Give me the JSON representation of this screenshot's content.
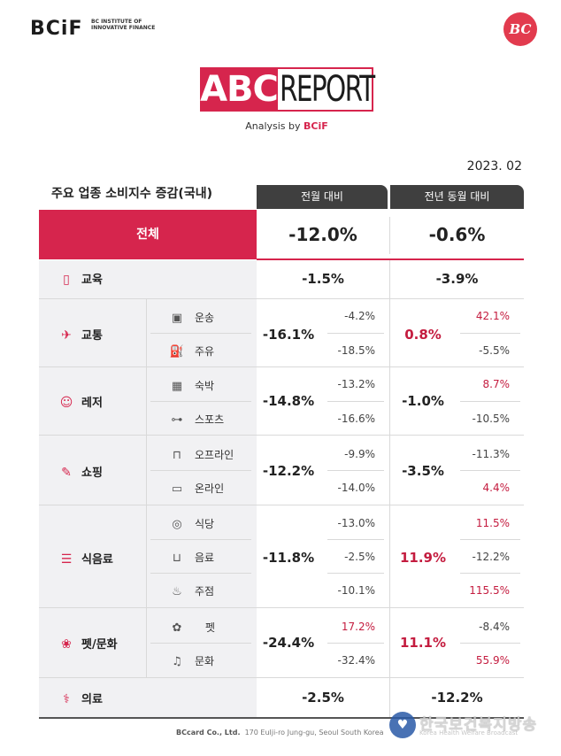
{
  "header": {
    "logo": "BCiF",
    "logo_sub": "BC INSTITUTE OF INNOVATIVE FINANCE",
    "badge": "BC",
    "abc": "ABC",
    "report": "REPORT",
    "analysis_prefix": "Analysis by ",
    "analysis_brand": "BCiF",
    "date": "2023. 02"
  },
  "table": {
    "title": "주요 업종 소비지수 증감(국내)",
    "col_mom": "전월 대비",
    "col_yoy": "전년 동월 대비",
    "total": {
      "label": "전체",
      "mom": "-12.0%",
      "yoy": "-0.6%"
    },
    "education": {
      "label": "교육",
      "icon": "book-icon",
      "mom": "-1.5%",
      "yoy": "-3.9%"
    },
    "groups": [
      {
        "label": "교통",
        "icon": "airplane-icon",
        "mom": "-16.1%",
        "yoy": "0.8%",
        "yoy_red": true,
        "subs": [
          {
            "label": "운송",
            "icon": "train-icon",
            "mom": "-4.2%",
            "yoy": "42.1%",
            "yoy_red": true,
            "mom_red": false
          },
          {
            "label": "주유",
            "icon": "fuel-icon",
            "mom": "-18.5%",
            "yoy": "-5.5%",
            "yoy_red": false,
            "mom_red": false
          }
        ]
      },
      {
        "label": "레저",
        "icon": "smile-icon",
        "mom": "-14.8%",
        "yoy": "-1.0%",
        "yoy_red": false,
        "subs": [
          {
            "label": "숙박",
            "icon": "building-icon",
            "mom": "-13.2%",
            "yoy": "8.7%",
            "yoy_red": true,
            "mom_red": false
          },
          {
            "label": "스포츠",
            "icon": "dumbbell-icon",
            "mom": "-16.6%",
            "yoy": "-10.5%",
            "yoy_red": false,
            "mom_red": false
          }
        ]
      },
      {
        "label": "쇼핑",
        "icon": "card-icon",
        "mom": "-12.2%",
        "yoy": "-3.5%",
        "yoy_red": false,
        "subs": [
          {
            "label": "오프라인",
            "icon": "bag-icon",
            "mom": "-9.9%",
            "yoy": "-11.3%",
            "yoy_red": false,
            "mom_red": false
          },
          {
            "label": "온라인",
            "icon": "phone-icon",
            "mom": "-14.0%",
            "yoy": "4.4%",
            "yoy_red": true,
            "mom_red": false
          }
        ]
      },
      {
        "label": "식음료",
        "icon": "burger-icon",
        "mom": "-11.8%",
        "yoy": "11.9%",
        "yoy_red": true,
        "subs": [
          {
            "label": "식당",
            "icon": "plate-icon",
            "mom": "-13.0%",
            "yoy": "11.5%",
            "yoy_red": true,
            "mom_red": false
          },
          {
            "label": "음료",
            "icon": "cup-icon",
            "mom": "-2.5%",
            "yoy": "-12.2%",
            "yoy_red": false,
            "mom_red": false
          },
          {
            "label": "주점",
            "icon": "beer-icon",
            "mom": "-10.1%",
            "yoy": "115.5%",
            "yoy_red": true,
            "mom_red": false
          }
        ]
      },
      {
        "label": "펫/문화",
        "icon": "pet-culture-icon",
        "mom": "-24.4%",
        "yoy": "11.1%",
        "yoy_red": true,
        "subs": [
          {
            "label": "펫",
            "icon": "paw-icon",
            "mom": "17.2%",
            "yoy": "-8.4%",
            "yoy_red": false,
            "mom_red": true
          },
          {
            "label": "문화",
            "icon": "music-icon",
            "mom": "-32.4%",
            "yoy": "55.9%",
            "yoy_red": true,
            "mom_red": false
          }
        ]
      }
    ],
    "medical": {
      "label": "의료",
      "icon": "syringe-icon",
      "mom": "-2.5%",
      "yoy": "-12.2%"
    }
  },
  "footer": {
    "company": "BCcard Co., Ltd.",
    "address": "170 Eulji-ro Jung-gu, Seoul South Korea"
  },
  "watermark": {
    "text": "한국보건복지방송",
    "sub": "Korea Health Welfare Broadcast"
  },
  "colors": {
    "accent": "#d6254d",
    "header_dark": "#3f3f3f",
    "row_gray": "#f1f1f3"
  }
}
